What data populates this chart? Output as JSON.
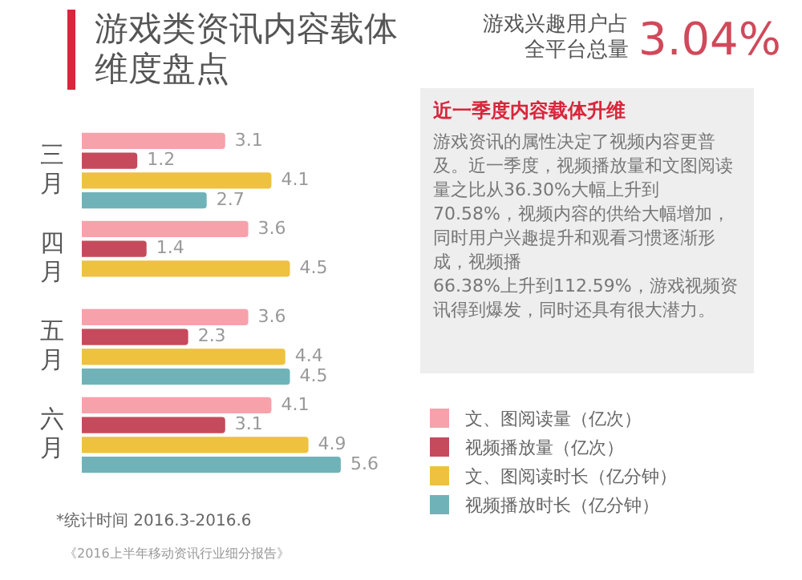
{
  "chart_data": {
    "type": "bar",
    "orientation": "horizontal",
    "title": "游戏类资讯内容载体维度盘点",
    "categories": [
      "三月",
      "四月",
      "五月",
      "六月"
    ],
    "series": [
      {
        "name": "文、图阅读量（亿次）",
        "color": "#f7a1ab",
        "values": [
          3.1,
          3.6,
          3.6,
          4.1
        ]
      },
      {
        "name": "视频播放量（亿次）",
        "color": "#c54b5c",
        "values": [
          1.2,
          1.4,
          2.3,
          3.1
        ]
      },
      {
        "name": "文、图阅读时长（亿分钟）",
        "color": "#eec23f",
        "values": [
          4.1,
          4.5,
          4.4,
          4.9
        ]
      },
      {
        "name": "视频播放时长（亿分钟）",
        "color": "#6fb3b8",
        "values": [
          2.7,
          null,
          4.5,
          5.6
        ]
      }
    ],
    "data_labels": true,
    "legend": "right",
    "annotations": [
      "游戏兴趣用户占全平台总量",
      "3.04%",
      "近一季度内容载体升维",
      "游戏资讯的属性决定了视频内容更普及。近一季度，视频播放量和文图阅读量之比从36.30%大幅上升到70.58%，视频内容的供给大幅增加，同时用户兴趣提升和观看习惯逐渐形成，视频播",
      "66.38%上升到112.59%，游戏视频资讯得到爆发，同时还具有很大潜力。",
      "*统计时间 2016.3-2016.6",
      "《2016上半年移动资讯行业细分报告》"
    ]
  }
}
